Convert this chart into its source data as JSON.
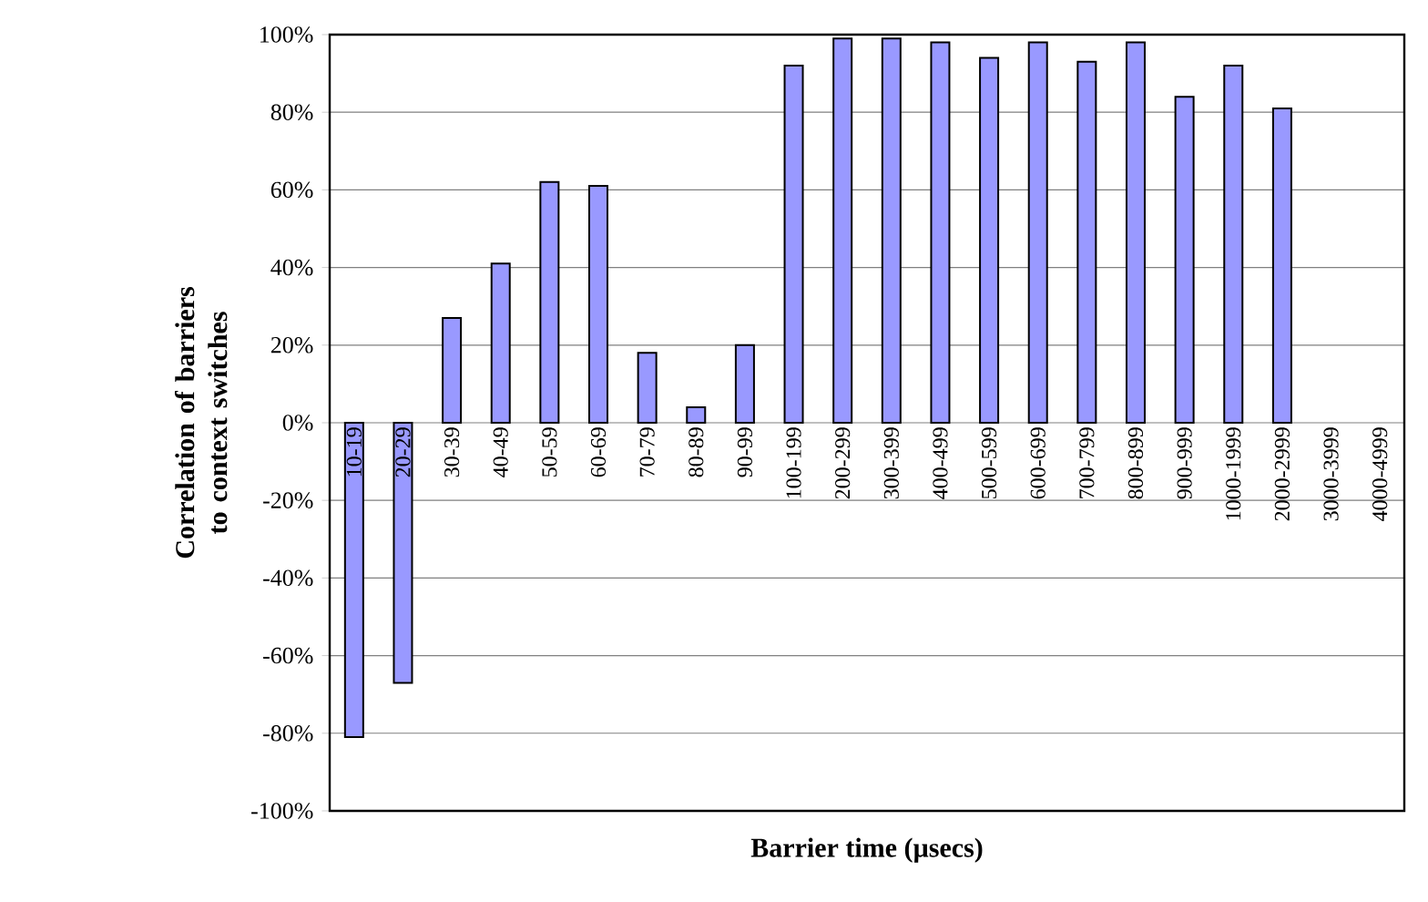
{
  "chart_data": {
    "type": "bar",
    "xlabel": "Barrier time (µsecs)",
    "ylabel": "Correlation of barriers to context switches",
    "categories": [
      "10-19",
      "20-29",
      "30-39",
      "40-49",
      "50-59",
      "60-69",
      "70-79",
      "80-89",
      "90-99",
      "100-199",
      "200-299",
      "300-399",
      "400-499",
      "500-599",
      "600-699",
      "700-799",
      "800-899",
      "900-999",
      "1000-1999",
      "2000-2999",
      "3000-3999",
      "4000-4999"
    ],
    "values": [
      -81,
      -67,
      27,
      41,
      62,
      61,
      18,
      4,
      20,
      92,
      99,
      99,
      98,
      94,
      98,
      93,
      98,
      84,
      92,
      81,
      null,
      null
    ],
    "color": "#9999ff",
    "ylim": [
      -100,
      100
    ],
    "yticks": [
      {
        "value": -100,
        "label": "-100%"
      },
      {
        "value": -80,
        "label": "-80%"
      },
      {
        "value": -60,
        "label": "-60%"
      },
      {
        "value": -40,
        "label": "-40%"
      },
      {
        "value": -20,
        "label": "-20%"
      },
      {
        "value": 0,
        "label": "0%"
      },
      {
        "value": 20,
        "label": "20%"
      },
      {
        "value": 40,
        "label": "40%"
      },
      {
        "value": 60,
        "label": "60%"
      },
      {
        "value": 80,
        "label": "80%"
      },
      {
        "value": 100,
        "label": "100%"
      }
    ],
    "grid": "y"
  }
}
